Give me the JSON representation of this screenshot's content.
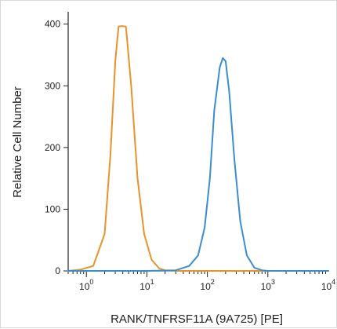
{
  "chart_data": {
    "type": "line",
    "title": "",
    "xlabel": "RANK/TNFRSF11A (9A725) [PE]",
    "ylabel": "Relative Cell Number",
    "x_scale": "log",
    "xlim": [
      0.5,
      10000
    ],
    "ylim": [
      0,
      420
    ],
    "x_ticks": [
      {
        "base": "10",
        "exp": "0",
        "value": 1
      },
      {
        "base": "10",
        "exp": "1",
        "value": 10
      },
      {
        "base": "10",
        "exp": "2",
        "value": 100
      },
      {
        "base": "10",
        "exp": "3",
        "value": 1000
      },
      {
        "base": "10",
        "exp": "4",
        "value": 10000
      }
    ],
    "y_ticks": [
      "0",
      "100",
      "200",
      "300",
      "400"
    ],
    "series": [
      {
        "color": "#e8922a",
        "x": [
          0.5,
          0.8,
          1.3,
          2.0,
          2.5,
          3.0,
          3.4,
          3.8,
          4.5,
          5.5,
          7.0,
          9.0,
          12.0,
          16.0,
          20.0,
          30.0,
          100.0,
          1000.0,
          10000.0
        ],
        "y": [
          0,
          2,
          8,
          60,
          190,
          340,
          396,
          397,
          396,
          300,
          150,
          60,
          18,
          4,
          1,
          0,
          0,
          0,
          0
        ]
      },
      {
        "color": "#3a8ed0",
        "x": [
          0.5,
          10.0,
          30.0,
          50.0,
          70.0,
          90.0,
          110.0,
          130.0,
          160.0,
          180.0,
          200.0,
          230.0,
          280.0,
          350.0,
          450.0,
          600.0,
          800.0,
          1000.0,
          10000.0
        ],
        "y": [
          0,
          0,
          1,
          8,
          25,
          70,
          150,
          260,
          330,
          345,
          340,
          290,
          180,
          80,
          25,
          5,
          1,
          0,
          0
        ]
      }
    ]
  }
}
